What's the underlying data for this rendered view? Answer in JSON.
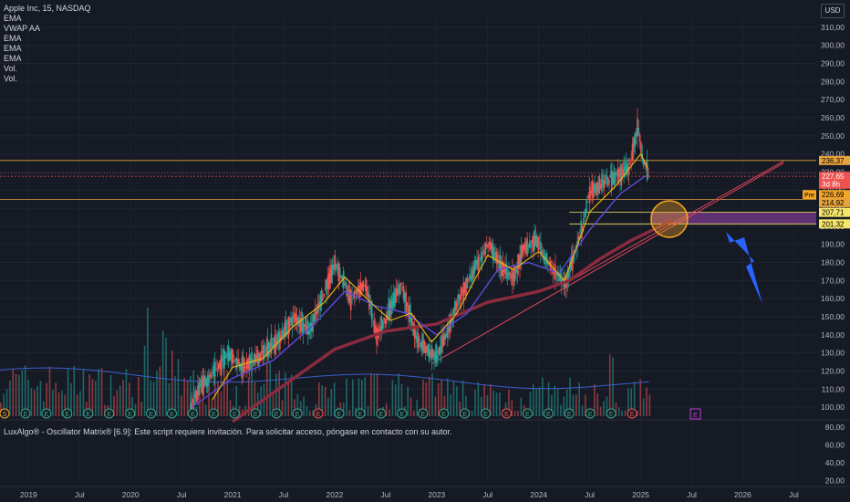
{
  "legend": {
    "symbol": "Apple Inc, 15, NASDAQ",
    "indicators": [
      "EMA",
      "VWAP AA",
      "EMA",
      "EMA",
      "EMA",
      "Vol.",
      "Vol."
    ]
  },
  "oscillator_title": "LuxAlgo® - Oscillator Matrix® [6.9]: Este script requiere invitación. Para solicitar acceso, póngase en contacto con su autor.",
  "currency_button": "USD",
  "colors": {
    "background": "#161a25",
    "up": "#26a69a",
    "down": "#ef5350",
    "ema_fast": "#f0b90b",
    "ema_mid": "#5b4bdb",
    "ema_slow": "#8b2b3e",
    "hline": "#e6a23c",
    "zone": "#7a3a8c",
    "arrow": "#2962ff",
    "circle": "#f5a623"
  },
  "chart_data": {
    "type": "candlestick",
    "y_axis_ticks": [
      "310,00",
      "300,00",
      "290,00",
      "280,00",
      "270,00",
      "260,00",
      "250,00",
      "240,00",
      "230,00",
      "220,00",
      "210,00",
      "200,00",
      "190,00",
      "180,00",
      "170,00",
      "160,00",
      "150,00",
      "140,00",
      "130,00",
      "120,00",
      "110,00",
      "100,00"
    ],
    "y_range": [
      95,
      315
    ],
    "oscillator_ticks": [
      "80,00",
      "60,00",
      "40,00",
      "20,00"
    ],
    "x_axis_ticks": [
      {
        "label": "2019",
        "t": 2019.0
      },
      {
        "label": "Jul",
        "t": 2019.5
      },
      {
        "label": "2020",
        "t": 2020.0
      },
      {
        "label": "Jul",
        "t": 2020.5
      },
      {
        "label": "2021",
        "t": 2021.0
      },
      {
        "label": "Jul",
        "t": 2021.5
      },
      {
        "label": "2022",
        "t": 2022.0
      },
      {
        "label": "Jul",
        "t": 2022.5
      },
      {
        "label": "2023",
        "t": 2023.0
      },
      {
        "label": "Jul",
        "t": 2023.5
      },
      {
        "label": "2024",
        "t": 2024.0
      },
      {
        "label": "Jul",
        "t": 2024.5
      },
      {
        "label": "2025",
        "t": 2025.0
      },
      {
        "label": "Jul",
        "t": 2025.5
      },
      {
        "label": "2026",
        "t": 2026.0
      },
      {
        "label": "Jul",
        "t": 2026.5
      }
    ],
    "x_range": [
      2018.72,
      2026.72
    ],
    "price_path": [
      [
        2020.58,
        100
      ],
      [
        2020.68,
        112
      ],
      [
        2020.8,
        118
      ],
      [
        2020.95,
        130
      ],
      [
        2021.1,
        122
      ],
      [
        2021.25,
        128
      ],
      [
        2021.45,
        138
      ],
      [
        2021.6,
        150
      ],
      [
        2021.75,
        142
      ],
      [
        2021.9,
        165
      ],
      [
        2022.0,
        180
      ],
      [
        2022.15,
        160
      ],
      [
        2022.3,
        168
      ],
      [
        2022.4,
        140
      ],
      [
        2022.5,
        150
      ],
      [
        2022.65,
        168
      ],
      [
        2022.78,
        140
      ],
      [
        2022.92,
        130
      ],
      [
        2023.0,
        128
      ],
      [
        2023.2,
        158
      ],
      [
        2023.38,
        178
      ],
      [
        2023.5,
        190
      ],
      [
        2023.62,
        178
      ],
      [
        2023.75,
        172
      ],
      [
        2023.85,
        188
      ],
      [
        2023.98,
        192
      ],
      [
        2024.1,
        178
      ],
      [
        2024.25,
        168
      ],
      [
        2024.4,
        195
      ],
      [
        2024.5,
        220
      ],
      [
        2024.62,
        224
      ],
      [
        2024.75,
        228
      ],
      [
        2024.88,
        232
      ],
      [
        2024.96,
        255
      ],
      [
        2025.02,
        236
      ],
      [
        2025.07,
        228
      ]
    ],
    "ema_fast_path": [
      [
        2020.8,
        104
      ],
      [
        2021.0,
        122
      ],
      [
        2021.3,
        127
      ],
      [
        2021.6,
        145
      ],
      [
        2021.9,
        158
      ],
      [
        2022.1,
        172
      ],
      [
        2022.35,
        158
      ],
      [
        2022.55,
        148
      ],
      [
        2022.75,
        152
      ],
      [
        2022.95,
        136
      ],
      [
        2023.2,
        152
      ],
      [
        2023.5,
        184
      ],
      [
        2023.75,
        176
      ],
      [
        2024.0,
        186
      ],
      [
        2024.25,
        170
      ],
      [
        2024.5,
        208
      ],
      [
        2024.75,
        222
      ],
      [
        2025.0,
        240
      ],
      [
        2025.07,
        232
      ]
    ],
    "ema_mid_path": [
      [
        2020.6,
        100
      ],
      [
        2021.0,
        116
      ],
      [
        2021.4,
        126
      ],
      [
        2021.8,
        146
      ],
      [
        2022.1,
        164
      ],
      [
        2022.4,
        156
      ],
      [
        2022.7,
        152
      ],
      [
        2023.0,
        140
      ],
      [
        2023.3,
        152
      ],
      [
        2023.6,
        176
      ],
      [
        2023.9,
        180
      ],
      [
        2024.2,
        174
      ],
      [
        2024.5,
        198
      ],
      [
        2024.8,
        218
      ],
      [
        2025.05,
        228
      ]
    ],
    "ema_slow_path": [
      [
        2021.0,
        92
      ],
      [
        2021.5,
        112
      ],
      [
        2022.0,
        132
      ],
      [
        2022.5,
        142
      ],
      [
        2023.0,
        146
      ],
      [
        2023.5,
        158
      ],
      [
        2024.0,
        164
      ],
      [
        2024.3,
        170
      ],
      [
        2024.6,
        182
      ],
      [
        2024.9,
        192
      ],
      [
        2025.3,
        203
      ]
    ],
    "trendlines": [
      {
        "from": [
          2022.95,
          124
        ],
        "to": [
          2026.4,
          235
        ]
      },
      {
        "from": [
          2024.25,
          168
        ],
        "to": [
          2026.4,
          236
        ]
      }
    ],
    "horizontal_lines": [
      236.37,
      227.65,
      214.92
    ],
    "zone": {
      "x_from": 2025.1,
      "x_to": 2026.72,
      "y_from": 201.32,
      "y_to": 207.71
    },
    "circle": {
      "x": 2025.28,
      "y": 204,
      "radius_px": 20
    },
    "price_labels": [
      {
        "text": "236,37",
        "y": 236.37,
        "bg": "#e6a23c",
        "fg": "#000000"
      },
      {
        "text": "227,65",
        "y": 227.65,
        "bg": "#ef5350",
        "fg": "#ffffff"
      },
      {
        "text": "3d 8h",
        "y": 223.3,
        "bg": "#ef5350",
        "fg": "#ffffff"
      },
      {
        "text": "226,69",
        "y": 217.5,
        "bg": "#f5a623",
        "fg": "#000000",
        "tag": "Pre"
      },
      {
        "text": "214,92",
        "y": 213.1,
        "bg": "#e6a23c",
        "fg": "#000000"
      },
      {
        "text": "207,71",
        "y": 207.71,
        "bg": "#f5e66a",
        "fg": "#000000"
      },
      {
        "text": "201,32",
        "y": 201.32,
        "bg": "#f5e66a",
        "fg": "#000000"
      }
    ],
    "events": {
      "row_y": 453,
      "labels": [
        "S",
        "E",
        "E",
        "E",
        "E",
        "E",
        "E",
        "E",
        "E",
        "E",
        "E",
        "E",
        "E",
        "E",
        "E",
        "E",
        "E",
        "E",
        "E",
        "E",
        "E",
        "E",
        "E",
        "E",
        "E",
        "E",
        "E",
        "E",
        "E",
        "E",
        "E"
      ],
      "red": [
        15,
        24,
        30
      ]
    }
  }
}
